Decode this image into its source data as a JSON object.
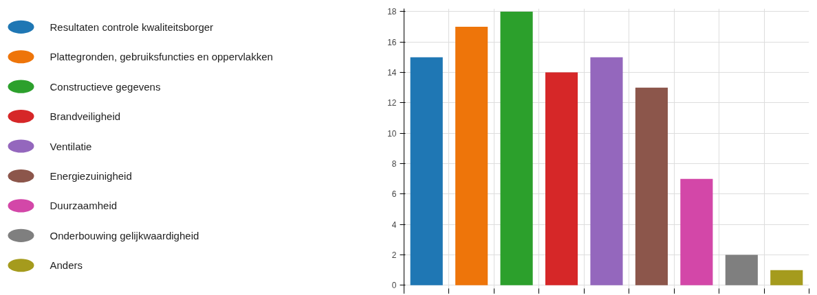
{
  "chart_data": {
    "type": "bar",
    "categories": [
      null,
      null,
      null,
      null,
      null,
      null,
      null,
      null,
      null
    ],
    "series": [
      {
        "name": "Resultaten controle kwaliteitsborger",
        "color": "#1f77b4",
        "values": [
          15,
          null,
          null,
          null,
          null,
          null,
          null,
          null,
          null
        ]
      },
      {
        "name": "Plattegronden, gebruiksfuncties en oppervlakken",
        "color": "#ee750a",
        "values": [
          null,
          17,
          null,
          null,
          null,
          null,
          null,
          null,
          null
        ]
      },
      {
        "name": "Constructieve gegevens",
        "color": "#2ca02c",
        "values": [
          null,
          null,
          18,
          null,
          null,
          null,
          null,
          null,
          null
        ]
      },
      {
        "name": "Brandveiligheid",
        "color": "#d62728",
        "values": [
          null,
          null,
          null,
          14,
          null,
          null,
          null,
          null,
          null
        ]
      },
      {
        "name": "Ventilatie",
        "color": "#9467bd",
        "values": [
          null,
          null,
          null,
          null,
          15,
          null,
          null,
          null,
          null
        ]
      },
      {
        "name": "Energiezuinigheid",
        "color": "#8c564b",
        "values": [
          null,
          null,
          null,
          null,
          null,
          13,
          null,
          null,
          null
        ]
      },
      {
        "name": "Duurzaamheid",
        "color": "#d347a8",
        "values": [
          null,
          null,
          null,
          null,
          null,
          null,
          7,
          null,
          null
        ]
      },
      {
        "name": "Onderbouwing gelijkwaardigheid",
        "color": "#7f7f7f",
        "values": [
          null,
          null,
          null,
          null,
          null,
          null,
          null,
          2,
          null
        ]
      },
      {
        "name": "Anders",
        "color": "#a59b1d",
        "values": [
          null,
          null,
          null,
          null,
          null,
          null,
          null,
          null,
          1
        ]
      }
    ],
    "ylim": [
      -0.3,
      18.2
    ],
    "yticks": [
      0,
      2,
      4,
      6,
      8,
      10,
      12,
      14,
      16,
      18
    ],
    "grid": true,
    "legend": "left"
  }
}
